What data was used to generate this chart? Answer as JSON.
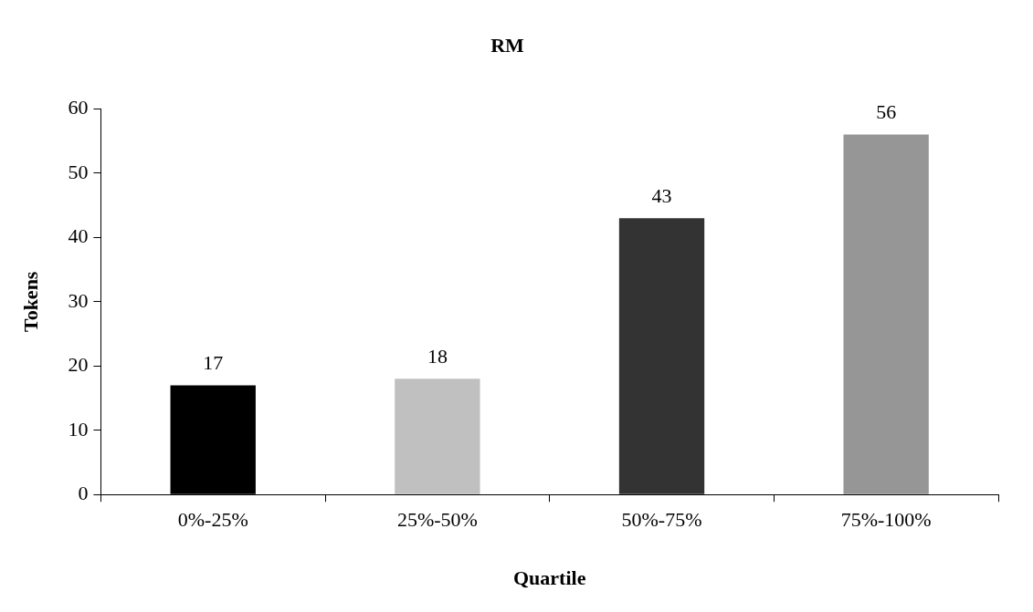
{
  "chart_data": {
    "type": "bar",
    "title": "RM",
    "xlabel": "Quartile",
    "ylabel": "Tokens",
    "categories": [
      "0%-25%",
      "25%-50%",
      "50%-75%",
      "75%-100%"
    ],
    "values": [
      17,
      18,
      43,
      56
    ],
    "colors": [
      "#000000",
      "#c0c0c0",
      "#333333",
      "#969696"
    ],
    "ylim": [
      0,
      60
    ],
    "yticks": [
      0,
      10,
      20,
      30,
      40,
      50,
      60
    ],
    "grid": false,
    "data_labels": true
  }
}
